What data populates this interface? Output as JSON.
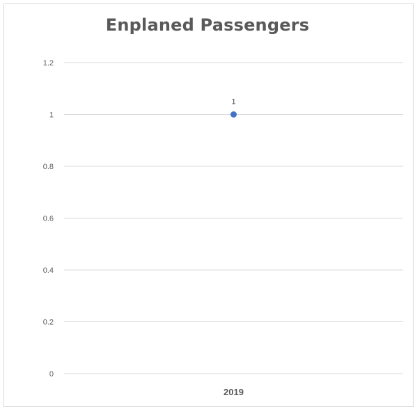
{
  "chart_data": {
    "type": "scatter",
    "title": "Enplaned Passengers",
    "xlabel": "",
    "ylabel": "",
    "categories": [
      "2019"
    ],
    "series": [
      {
        "values": [
          1
        ],
        "color": "#4472c4"
      }
    ],
    "data_labels": [
      "1"
    ],
    "y_ticks": [
      "0",
      "0.2",
      "0.4",
      "0.6",
      "0.8",
      "1",
      "1.2"
    ],
    "ylim": [
      0,
      1.2
    ],
    "grid": true,
    "legend": "none"
  }
}
